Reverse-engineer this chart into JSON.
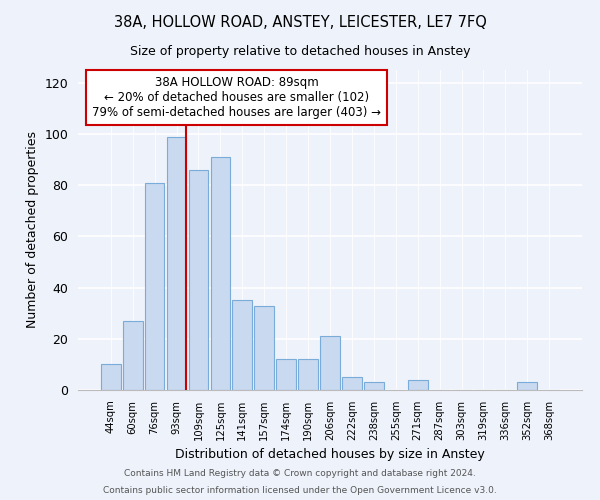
{
  "title": "38A, HOLLOW ROAD, ANSTEY, LEICESTER, LE7 7FQ",
  "subtitle": "Size of property relative to detached houses in Anstey",
  "xlabel": "Distribution of detached houses by size in Anstey",
  "ylabel": "Number of detached properties",
  "bar_color": "#c9d9f0",
  "bar_edge_color": "#7aacda",
  "categories": [
    "44sqm",
    "60sqm",
    "76sqm",
    "93sqm",
    "109sqm",
    "125sqm",
    "141sqm",
    "157sqm",
    "174sqm",
    "190sqm",
    "206sqm",
    "222sqm",
    "238sqm",
    "255sqm",
    "271sqm",
    "287sqm",
    "303sqm",
    "319sqm",
    "336sqm",
    "352sqm",
    "368sqm"
  ],
  "values": [
    10,
    27,
    81,
    99,
    86,
    91,
    35,
    33,
    12,
    12,
    21,
    5,
    3,
    0,
    4,
    0,
    0,
    0,
    0,
    3,
    0
  ],
  "ylim": [
    0,
    125
  ],
  "yticks": [
    0,
    20,
    40,
    60,
    80,
    100,
    120
  ],
  "vline_bin_index": 3,
  "vline_color": "#cc0000",
  "annotation_title": "38A HOLLOW ROAD: 89sqm",
  "annotation_line1": "← 20% of detached houses are smaller (102)",
  "annotation_line2": "79% of semi-detached houses are larger (403) →",
  "annotation_box_color": "#ffffff",
  "annotation_box_edge_color": "#cc0000",
  "footer_line1": "Contains HM Land Registry data © Crown copyright and database right 2024.",
  "footer_line2": "Contains public sector information licensed under the Open Government Licence v3.0.",
  "background_color": "#eef2fa"
}
